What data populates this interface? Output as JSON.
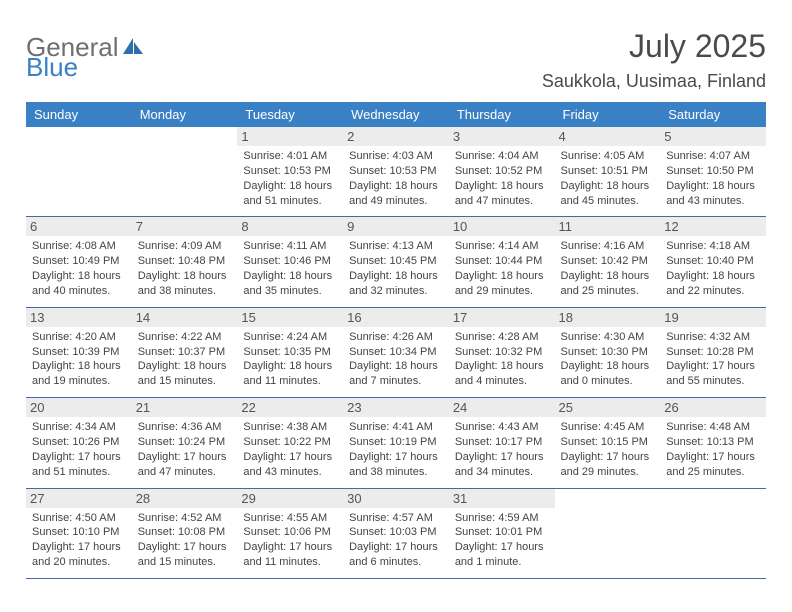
{
  "brand": {
    "part1": "General",
    "part2": "Blue"
  },
  "title": "July 2025",
  "location": "Saukkola, Uusimaa, Finland",
  "colors": {
    "header_bg": "#3a80c4",
    "header_text": "#ffffff",
    "border": "#3a6fa6",
    "daynum_bg": "#ececec",
    "text": "#444444",
    "brand_gray": "#6f6f6f",
    "brand_blue": "#3a80c4"
  },
  "weekdays": [
    "Sunday",
    "Monday",
    "Tuesday",
    "Wednesday",
    "Thursday",
    "Friday",
    "Saturday"
  ],
  "weeks": [
    [
      {
        "n": "",
        "lines": []
      },
      {
        "n": "",
        "lines": []
      },
      {
        "n": "1",
        "lines": [
          "Sunrise: 4:01 AM",
          "Sunset: 10:53 PM",
          "Daylight: 18 hours",
          "and 51 minutes."
        ]
      },
      {
        "n": "2",
        "lines": [
          "Sunrise: 4:03 AM",
          "Sunset: 10:53 PM",
          "Daylight: 18 hours",
          "and 49 minutes."
        ]
      },
      {
        "n": "3",
        "lines": [
          "Sunrise: 4:04 AM",
          "Sunset: 10:52 PM",
          "Daylight: 18 hours",
          "and 47 minutes."
        ]
      },
      {
        "n": "4",
        "lines": [
          "Sunrise: 4:05 AM",
          "Sunset: 10:51 PM",
          "Daylight: 18 hours",
          "and 45 minutes."
        ]
      },
      {
        "n": "5",
        "lines": [
          "Sunrise: 4:07 AM",
          "Sunset: 10:50 PM",
          "Daylight: 18 hours",
          "and 43 minutes."
        ]
      }
    ],
    [
      {
        "n": "6",
        "lines": [
          "Sunrise: 4:08 AM",
          "Sunset: 10:49 PM",
          "Daylight: 18 hours",
          "and 40 minutes."
        ]
      },
      {
        "n": "7",
        "lines": [
          "Sunrise: 4:09 AM",
          "Sunset: 10:48 PM",
          "Daylight: 18 hours",
          "and 38 minutes."
        ]
      },
      {
        "n": "8",
        "lines": [
          "Sunrise: 4:11 AM",
          "Sunset: 10:46 PM",
          "Daylight: 18 hours",
          "and 35 minutes."
        ]
      },
      {
        "n": "9",
        "lines": [
          "Sunrise: 4:13 AM",
          "Sunset: 10:45 PM",
          "Daylight: 18 hours",
          "and 32 minutes."
        ]
      },
      {
        "n": "10",
        "lines": [
          "Sunrise: 4:14 AM",
          "Sunset: 10:44 PM",
          "Daylight: 18 hours",
          "and 29 minutes."
        ]
      },
      {
        "n": "11",
        "lines": [
          "Sunrise: 4:16 AM",
          "Sunset: 10:42 PM",
          "Daylight: 18 hours",
          "and 25 minutes."
        ]
      },
      {
        "n": "12",
        "lines": [
          "Sunrise: 4:18 AM",
          "Sunset: 10:40 PM",
          "Daylight: 18 hours",
          "and 22 minutes."
        ]
      }
    ],
    [
      {
        "n": "13",
        "lines": [
          "Sunrise: 4:20 AM",
          "Sunset: 10:39 PM",
          "Daylight: 18 hours",
          "and 19 minutes."
        ]
      },
      {
        "n": "14",
        "lines": [
          "Sunrise: 4:22 AM",
          "Sunset: 10:37 PM",
          "Daylight: 18 hours",
          "and 15 minutes."
        ]
      },
      {
        "n": "15",
        "lines": [
          "Sunrise: 4:24 AM",
          "Sunset: 10:35 PM",
          "Daylight: 18 hours",
          "and 11 minutes."
        ]
      },
      {
        "n": "16",
        "lines": [
          "Sunrise: 4:26 AM",
          "Sunset: 10:34 PM",
          "Daylight: 18 hours",
          "and 7 minutes."
        ]
      },
      {
        "n": "17",
        "lines": [
          "Sunrise: 4:28 AM",
          "Sunset: 10:32 PM",
          "Daylight: 18 hours",
          "and 4 minutes."
        ]
      },
      {
        "n": "18",
        "lines": [
          "Sunrise: 4:30 AM",
          "Sunset: 10:30 PM",
          "Daylight: 18 hours",
          "and 0 minutes."
        ]
      },
      {
        "n": "19",
        "lines": [
          "Sunrise: 4:32 AM",
          "Sunset: 10:28 PM",
          "Daylight: 17 hours",
          "and 55 minutes."
        ]
      }
    ],
    [
      {
        "n": "20",
        "lines": [
          "Sunrise: 4:34 AM",
          "Sunset: 10:26 PM",
          "Daylight: 17 hours",
          "and 51 minutes."
        ]
      },
      {
        "n": "21",
        "lines": [
          "Sunrise: 4:36 AM",
          "Sunset: 10:24 PM",
          "Daylight: 17 hours",
          "and 47 minutes."
        ]
      },
      {
        "n": "22",
        "lines": [
          "Sunrise: 4:38 AM",
          "Sunset: 10:22 PM",
          "Daylight: 17 hours",
          "and 43 minutes."
        ]
      },
      {
        "n": "23",
        "lines": [
          "Sunrise: 4:41 AM",
          "Sunset: 10:19 PM",
          "Daylight: 17 hours",
          "and 38 minutes."
        ]
      },
      {
        "n": "24",
        "lines": [
          "Sunrise: 4:43 AM",
          "Sunset: 10:17 PM",
          "Daylight: 17 hours",
          "and 34 minutes."
        ]
      },
      {
        "n": "25",
        "lines": [
          "Sunrise: 4:45 AM",
          "Sunset: 10:15 PM",
          "Daylight: 17 hours",
          "and 29 minutes."
        ]
      },
      {
        "n": "26",
        "lines": [
          "Sunrise: 4:48 AM",
          "Sunset: 10:13 PM",
          "Daylight: 17 hours",
          "and 25 minutes."
        ]
      }
    ],
    [
      {
        "n": "27",
        "lines": [
          "Sunrise: 4:50 AM",
          "Sunset: 10:10 PM",
          "Daylight: 17 hours",
          "and 20 minutes."
        ]
      },
      {
        "n": "28",
        "lines": [
          "Sunrise: 4:52 AM",
          "Sunset: 10:08 PM",
          "Daylight: 17 hours",
          "and 15 minutes."
        ]
      },
      {
        "n": "29",
        "lines": [
          "Sunrise: 4:55 AM",
          "Sunset: 10:06 PM",
          "Daylight: 17 hours",
          "and 11 minutes."
        ]
      },
      {
        "n": "30",
        "lines": [
          "Sunrise: 4:57 AM",
          "Sunset: 10:03 PM",
          "Daylight: 17 hours",
          "and 6 minutes."
        ]
      },
      {
        "n": "31",
        "lines": [
          "Sunrise: 4:59 AM",
          "Sunset: 10:01 PM",
          "Daylight: 17 hours",
          "and 1 minute."
        ]
      },
      {
        "n": "",
        "lines": []
      },
      {
        "n": "",
        "lines": []
      }
    ]
  ]
}
